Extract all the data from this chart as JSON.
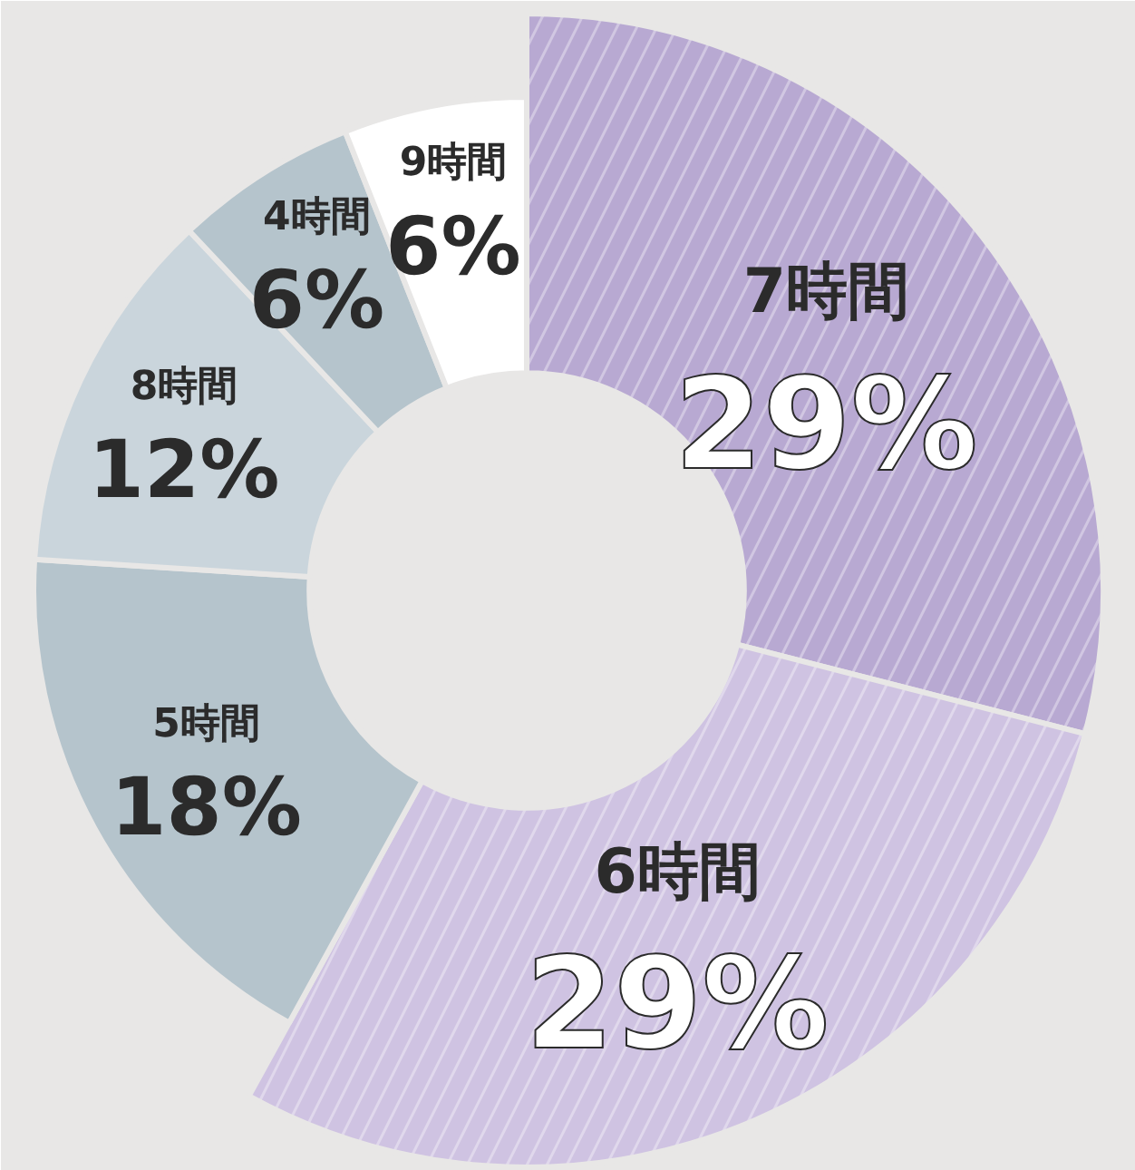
{
  "chart_data": {
    "type": "donut",
    "categories": [
      "7時間",
      "6時間",
      "5時間",
      "8時間",
      "4時間",
      "9時間"
    ],
    "values": [
      29,
      29,
      18,
      12,
      6,
      6
    ],
    "colors": [
      "#b8a9d2",
      "#cfc3e2",
      "#b5c4cc",
      "#cad5dc",
      "#b5c4cc",
      "#ffffff"
    ],
    "value_labels": [
      "29%",
      "29%",
      "18%",
      "12%",
      "6%",
      "6%"
    ]
  }
}
